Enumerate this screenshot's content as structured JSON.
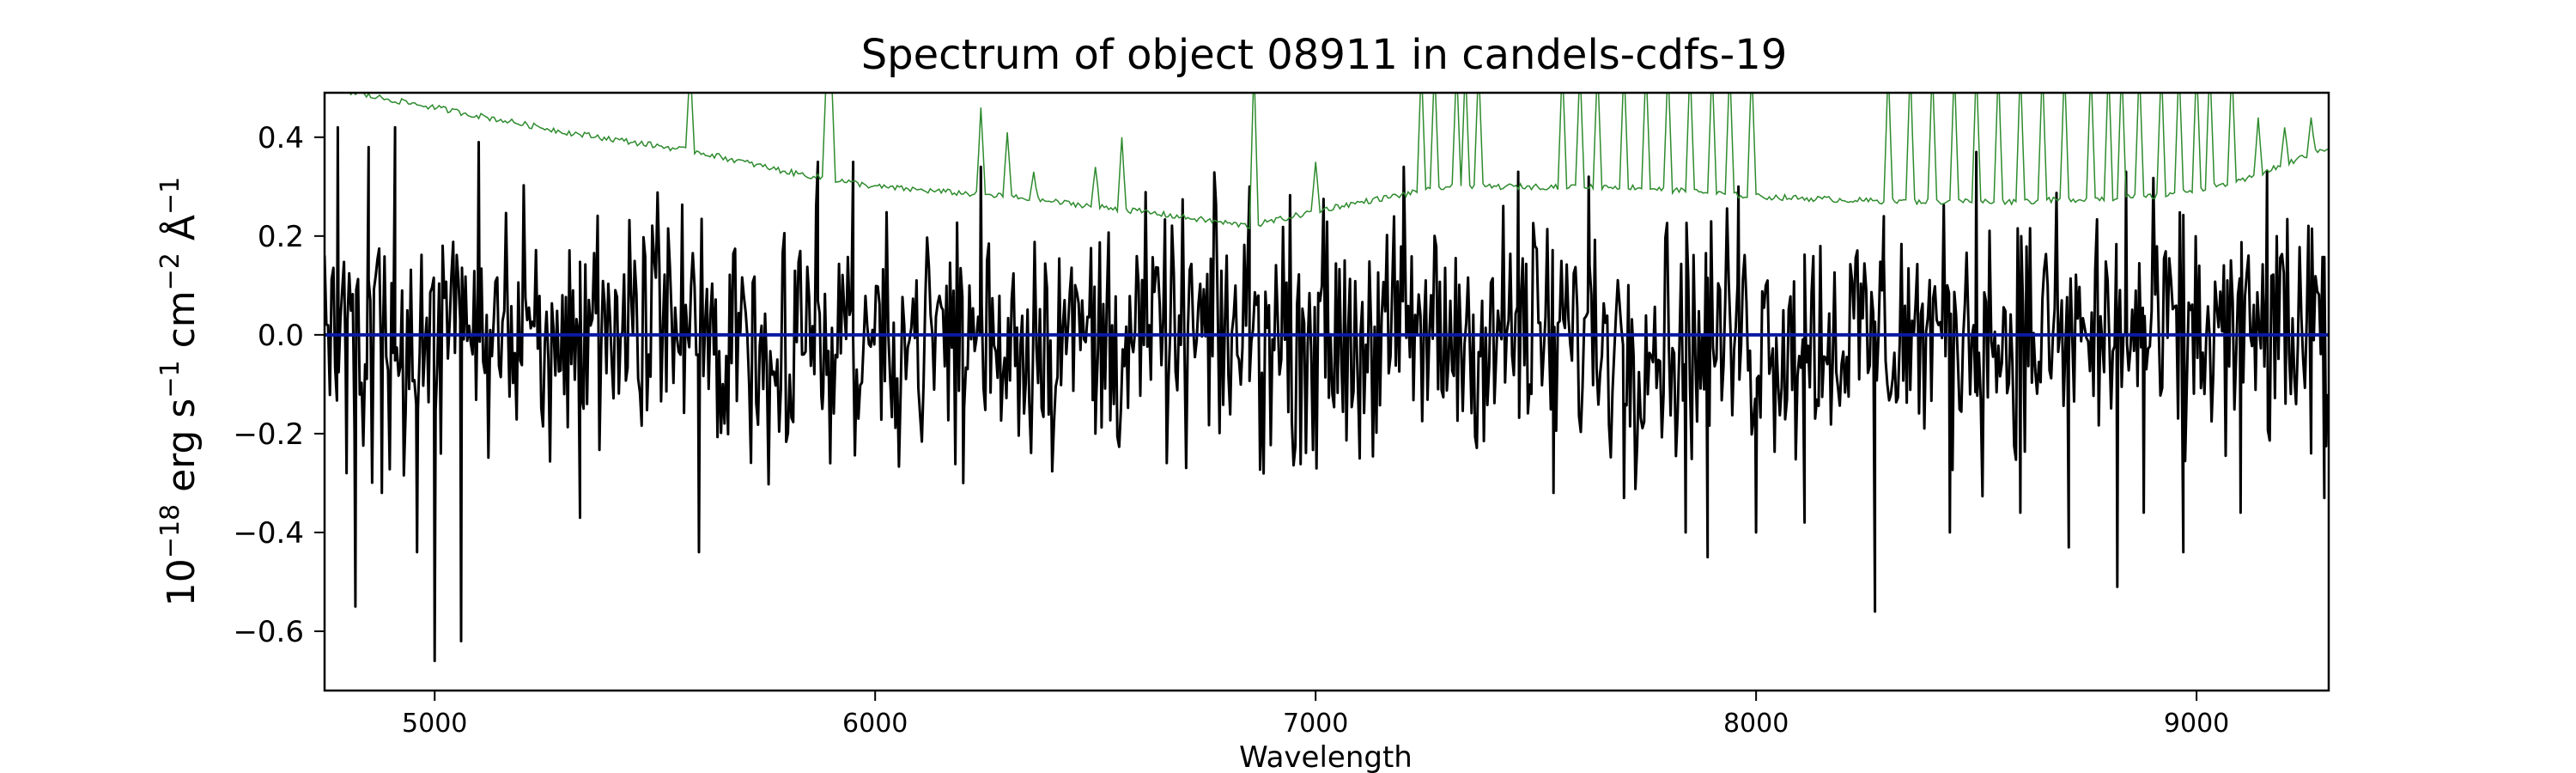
{
  "chart_data": {
    "type": "line",
    "title": "Spectrum of object 08911 in candels-cdfs-19",
    "xlabel": "Wavelength",
    "ylabel": {
      "base": "10",
      "base_exp": "−18",
      "unit_erg": " erg s",
      "s_exp": "−1",
      "unit_cm": " cm",
      "cm_exp": "−2",
      "unit_ang": " Å",
      "ang_exp": "−1"
    },
    "xlim": [
      4750,
      9300
    ],
    "ylim": [
      -0.72,
      0.49
    ],
    "xticks": [
      5000,
      6000,
      7000,
      8000,
      9000
    ],
    "xtick_labels": [
      "5000",
      "6000",
      "7000",
      "8000",
      "9000"
    ],
    "yticks": [
      -0.6,
      -0.4,
      -0.2,
      0.0,
      0.2,
      0.4
    ],
    "ytick_labels": [
      "−0.6",
      "−0.4",
      "−0.2",
      "0.0",
      "0.2",
      "0.4"
    ],
    "grid": false,
    "series": [
      {
        "role": "flux",
        "color": "#000000",
        "noise_sigma": 0.17,
        "sample_step": 4,
        "anchors": [
          [
            4780,
            0.42
          ],
          [
            4800,
            -0.28
          ],
          [
            4820,
            -0.55
          ],
          [
            4850,
            0.38
          ],
          [
            4880,
            -0.32
          ],
          [
            4910,
            0.42
          ],
          [
            4960,
            -0.44
          ],
          [
            5000,
            -0.66
          ],
          [
            5060,
            -0.62
          ],
          [
            5100,
            0.39
          ],
          [
            5330,
            -0.37
          ],
          [
            5600,
            -0.44
          ],
          [
            5870,
            0.35
          ],
          [
            5880,
            -0.15
          ],
          [
            5950,
            0.35
          ],
          [
            6200,
            -0.3
          ],
          [
            6240,
            0.34
          ],
          [
            6500,
            -0.2
          ],
          [
            6850,
            0.3
          ],
          [
            7100,
            -0.25
          ],
          [
            7200,
            0.34
          ],
          [
            7460,
            0.33
          ],
          [
            7540,
            -0.32
          ],
          [
            7620,
            0.32
          ],
          [
            7700,
            -0.33
          ],
          [
            7840,
            -0.4
          ],
          [
            7890,
            -0.45
          ],
          [
            7960,
            0.3
          ],
          [
            8000,
            -0.4
          ],
          [
            8110,
            -0.38
          ],
          [
            8270,
            -0.56
          ],
          [
            8290,
            0.24
          ],
          [
            8440,
            -0.4
          ],
          [
            8500,
            0.37
          ],
          [
            8600,
            -0.36
          ],
          [
            8710,
            -0.43
          ],
          [
            8820,
            -0.51
          ],
          [
            8840,
            0.33
          ],
          [
            8880,
            -0.36
          ],
          [
            8970,
            -0.44
          ],
          [
            9100,
            -0.36
          ],
          [
            9160,
            0.33
          ],
          [
            9260,
            -0.24
          ],
          [
            9290,
            -0.33
          ]
        ]
      },
      {
        "role": "zero",
        "color": "#0a1aa0",
        "x": [
          4750,
          9300
        ],
        "y": [
          0.0,
          0.0
        ]
      },
      {
        "role": "error",
        "color": "#2e8b2e",
        "baseline": [
          [
            4750,
            0.5
          ],
          [
            5000,
            0.46
          ],
          [
            5300,
            0.41
          ],
          [
            5600,
            0.37
          ],
          [
            5800,
            0.33
          ],
          [
            6000,
            0.3
          ],
          [
            6300,
            0.28
          ],
          [
            6600,
            0.25
          ],
          [
            6850,
            0.22
          ],
          [
            7050,
            0.26
          ],
          [
            7300,
            0.3
          ],
          [
            7700,
            0.3
          ],
          [
            8000,
            0.28
          ],
          [
            8300,
            0.27
          ],
          [
            8600,
            0.27
          ],
          [
            8900,
            0.28
          ],
          [
            9100,
            0.31
          ],
          [
            9300,
            0.38
          ]
        ],
        "spikes": [
          [
            5580,
            0.55
          ],
          [
            5890,
            0.55
          ],
          [
            5900,
            0.55
          ],
          [
            6240,
            0.46
          ],
          [
            6300,
            0.41
          ],
          [
            6360,
            0.33
          ],
          [
            6500,
            0.34
          ],
          [
            6560,
            0.4
          ],
          [
            6860,
            0.55
          ],
          [
            7000,
            0.35
          ],
          [
            7240,
            0.55
          ],
          [
            7270,
            0.55
          ],
          [
            7320,
            0.55
          ],
          [
            7340,
            0.55
          ],
          [
            7370,
            0.55
          ],
          [
            7560,
            0.55
          ],
          [
            7600,
            0.55
          ],
          [
            7640,
            0.55
          ],
          [
            7700,
            0.55
          ],
          [
            7750,
            0.55
          ],
          [
            7800,
            0.55
          ],
          [
            7850,
            0.55
          ],
          [
            7900,
            0.55
          ],
          [
            7940,
            0.55
          ],
          [
            7990,
            0.55
          ],
          [
            8300,
            0.55
          ],
          [
            8350,
            0.55
          ],
          [
            8400,
            0.55
          ],
          [
            8450,
            0.55
          ],
          [
            8500,
            0.55
          ],
          [
            8550,
            0.55
          ],
          [
            8600,
            0.55
          ],
          [
            8650,
            0.55
          ],
          [
            8700,
            0.55
          ],
          [
            8760,
            0.55
          ],
          [
            8800,
            0.55
          ],
          [
            8830,
            0.55
          ],
          [
            8870,
            0.55
          ],
          [
            8920,
            0.55
          ],
          [
            8960,
            0.55
          ],
          [
            9000,
            0.55
          ],
          [
            9030,
            0.55
          ],
          [
            9080,
            0.55
          ],
          [
            9140,
            0.44
          ],
          [
            9200,
            0.42
          ],
          [
            9260,
            0.44
          ]
        ]
      }
    ]
  }
}
